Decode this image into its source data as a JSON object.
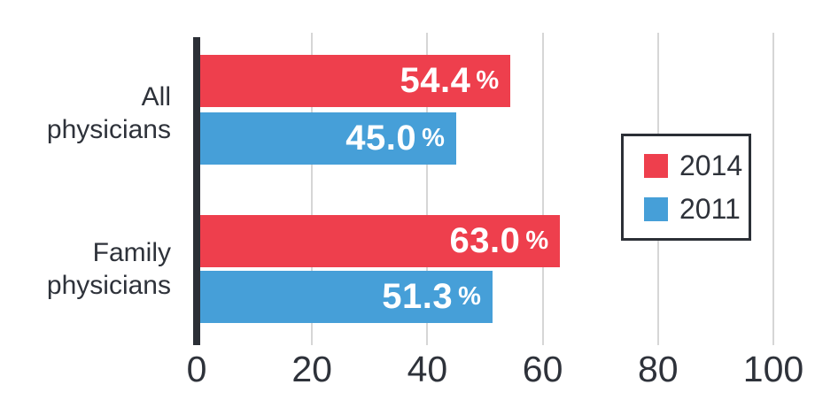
{
  "chart_data": {
    "type": "bar",
    "orientation": "horizontal",
    "categories": [
      "All\nphysicians",
      "Family\nphysicians"
    ],
    "series": [
      {
        "name": "2014",
        "color": "#ee3f4d",
        "values": [
          54.4,
          63.0
        ],
        "labels": [
          "54.4",
          "63.0"
        ]
      },
      {
        "name": "2011",
        "color": "#469fd8",
        "values": [
          45.0,
          51.3
        ],
        "labels": [
          "45.0",
          "51.3"
        ]
      }
    ],
    "percent_sign": "%",
    "xlim": [
      0,
      100
    ],
    "xticks": [
      "0",
      "20",
      "40",
      "60",
      "80",
      "100"
    ],
    "grid": "vertical-gridlines",
    "legend": {
      "position": "right",
      "border": true,
      "items": [
        "2014",
        "2011"
      ]
    }
  },
  "colors": {
    "series_2014": "#ee3f4d",
    "series_2011": "#469fd8",
    "axis": "#2b2f36",
    "text": "#2e323a",
    "gridline": "#d6d6d6",
    "value_label": "#ffffff",
    "background": "#ffffff"
  }
}
